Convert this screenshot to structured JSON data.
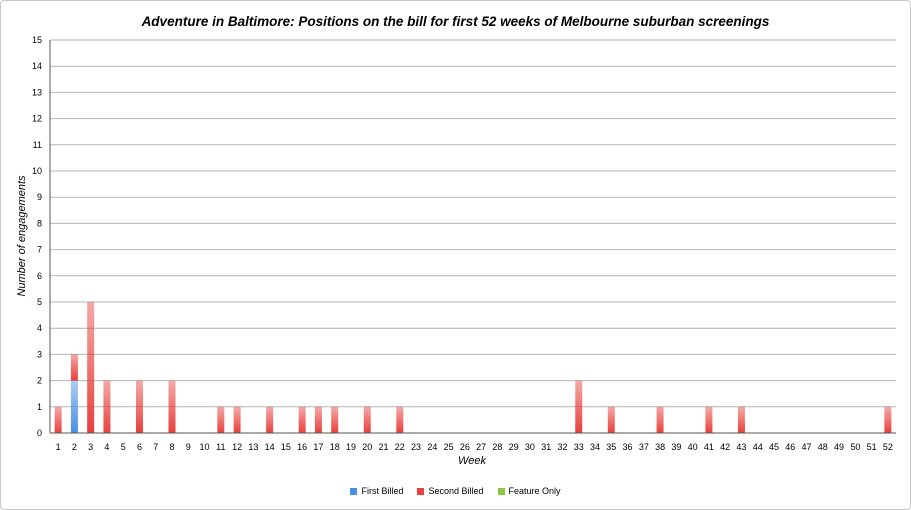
{
  "chart_data": {
    "type": "bar",
    "stacked": true,
    "title": "Adventure in Baltimore: Positions on the bill for first 52 weeks of Melbourne suburban screenings",
    "xlabel": "Week",
    "ylabel": "Number of engagements",
    "ylim": [
      0,
      15
    ],
    "yticks": [
      0,
      1,
      2,
      3,
      4,
      5,
      6,
      7,
      8,
      9,
      10,
      11,
      12,
      13,
      14,
      15
    ],
    "grid": true,
    "legend_position": "bottom",
    "categories": [
      "1",
      "2",
      "3",
      "4",
      "5",
      "6",
      "7",
      "8",
      "9",
      "10",
      "11",
      "12",
      "13",
      "14",
      "15",
      "16",
      "17",
      "18",
      "19",
      "20",
      "21",
      "22",
      "23",
      "24",
      "25",
      "26",
      "27",
      "28",
      "29",
      "30",
      "31",
      "32",
      "33",
      "34",
      "35",
      "36",
      "37",
      "38",
      "39",
      "40",
      "41",
      "42",
      "43",
      "44",
      "45",
      "46",
      "47",
      "48",
      "49",
      "50",
      "51",
      "52"
    ],
    "series": [
      {
        "name": "First Billed",
        "color": "#4a90e2",
        "values": [
          0,
          2,
          0,
          0,
          0,
          0,
          0,
          0,
          0,
          0,
          0,
          0,
          0,
          0,
          0,
          0,
          0,
          0,
          0,
          0,
          0,
          0,
          0,
          0,
          0,
          0,
          0,
          0,
          0,
          0,
          0,
          0,
          0,
          0,
          0,
          0,
          0,
          0,
          0,
          0,
          0,
          0,
          0,
          0,
          0,
          0,
          0,
          0,
          0,
          0,
          0,
          0
        ]
      },
      {
        "name": "Second Billed",
        "color": "#e8403c",
        "values": [
          1,
          1,
          5,
          2,
          0,
          2,
          0,
          2,
          0,
          0,
          1,
          1,
          0,
          1,
          0,
          1,
          1,
          1,
          0,
          1,
          0,
          1,
          0,
          0,
          0,
          0,
          0,
          0,
          0,
          0,
          0,
          0,
          2,
          0,
          1,
          0,
          0,
          1,
          0,
          0,
          1,
          0,
          1,
          0,
          0,
          0,
          0,
          0,
          0,
          0,
          0,
          1
        ]
      },
      {
        "name": "Feature Only",
        "color": "#8cc63f",
        "values": [
          0,
          0,
          0,
          0,
          0,
          0,
          0,
          0,
          0,
          0,
          0,
          0,
          0,
          0,
          0,
          0,
          0,
          0,
          0,
          0,
          0,
          0,
          0,
          0,
          0,
          0,
          0,
          0,
          0,
          0,
          0,
          0,
          0,
          0,
          0,
          0,
          0,
          0,
          0,
          0,
          0,
          0,
          0,
          0,
          0,
          0,
          0,
          0,
          0,
          0,
          0,
          0
        ]
      }
    ]
  }
}
